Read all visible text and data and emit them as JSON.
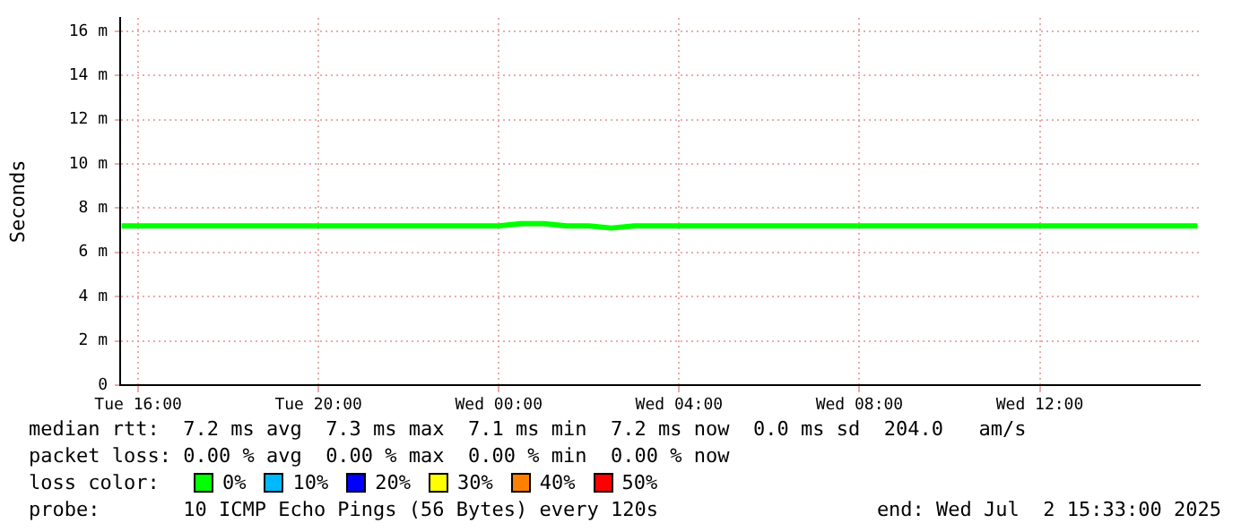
{
  "chart_data": {
    "type": "line",
    "ylabel": "Seconds",
    "x": [
      "2025-07-01T15:38",
      "2025-07-01T16:00",
      "2025-07-01T16:30",
      "2025-07-01T17:00",
      "2025-07-01T17:30",
      "2025-07-01T18:00",
      "2025-07-01T18:30",
      "2025-07-01T19:00",
      "2025-07-01T19:30",
      "2025-07-01T20:00",
      "2025-07-01T20:30",
      "2025-07-01T21:00",
      "2025-07-01T21:30",
      "2025-07-01T22:00",
      "2025-07-01T22:30",
      "2025-07-01T23:00",
      "2025-07-01T23:30",
      "2025-07-02T00:00",
      "2025-07-02T00:30",
      "2025-07-02T01:00",
      "2025-07-02T01:30",
      "2025-07-02T02:00",
      "2025-07-02T02:30",
      "2025-07-02T03:00",
      "2025-07-02T03:30",
      "2025-07-02T04:00",
      "2025-07-02T04:30",
      "2025-07-02T05:00",
      "2025-07-02T05:30",
      "2025-07-02T06:00",
      "2025-07-02T06:30",
      "2025-07-02T07:00",
      "2025-07-02T07:30",
      "2025-07-02T08:00",
      "2025-07-02T08:30",
      "2025-07-02T09:00",
      "2025-07-02T09:30",
      "2025-07-02T10:00",
      "2025-07-02T10:30",
      "2025-07-02T11:00",
      "2025-07-02T11:30",
      "2025-07-02T12:00",
      "2025-07-02T12:30",
      "2025-07-02T13:00",
      "2025-07-02T13:30",
      "2025-07-02T14:00",
      "2025-07-02T14:30",
      "2025-07-02T15:00",
      "2025-07-02T15:30"
    ],
    "series": [
      {
        "color": "#00ff00",
        "values": [
          7.2,
          7.2,
          7.2,
          7.2,
          7.2,
          7.2,
          7.2,
          7.2,
          7.2,
          7.2,
          7.2,
          7.2,
          7.2,
          7.2,
          7.2,
          7.2,
          7.2,
          7.2,
          7.3,
          7.3,
          7.2,
          7.2,
          7.1,
          7.2,
          7.2,
          7.2,
          7.2,
          7.2,
          7.2,
          7.2,
          7.2,
          7.2,
          7.2,
          7.2,
          7.2,
          7.2,
          7.2,
          7.2,
          7.2,
          7.2,
          7.2,
          7.2,
          7.2,
          7.2,
          7.2,
          7.2,
          7.2,
          7.2,
          7.2
        ]
      }
    ],
    "xlim": [
      "2025-07-01T15:36",
      "2025-07-02T15:33"
    ],
    "xticks": [
      {
        "value": "2025-07-01T16:00",
        "label": "Tue 16:00"
      },
      {
        "value": "2025-07-01T20:00",
        "label": "Tue 20:00"
      },
      {
        "value": "2025-07-02T00:00",
        "label": "Wed 00:00"
      },
      {
        "value": "2025-07-02T04:00",
        "label": "Wed 04:00"
      },
      {
        "value": "2025-07-02T08:00",
        "label": "Wed 08:00"
      },
      {
        "value": "2025-07-02T12:00",
        "label": "Wed 12:00"
      }
    ],
    "ylim": [
      0,
      16.6
    ],
    "yticks": [
      0,
      {
        "value": 2,
        "label": "2 m"
      },
      {
        "value": 4,
        "label": "4 m"
      },
      {
        "value": 6,
        "label": "6 m"
      },
      {
        "value": 8,
        "label": "8 m"
      },
      {
        "value": 10,
        "label": "10 m"
      },
      {
        "value": 12,
        "label": "12 m"
      },
      {
        "value": 14,
        "label": "14 m"
      },
      {
        "value": 16,
        "label": "16 m"
      }
    ],
    "grid": true,
    "legend": false,
    "marker": "none",
    "line_style": "solid",
    "annotations": [
      "median rtt:  7.2 ms avg  7.3 ms max  7.1 ms min  7.2 ms now  0.0 ms sd  204.0   am/s",
      "packet loss: 0.00 % avg  0.00 % max  0.00 % min  0.00 % now",
      "loss color:",
      "0%",
      "10%",
      "20%",
      "30%",
      "40%",
      "50%",
      "probe:       10 ICMP Echo Pings (56 Bytes) every 120s",
      "end: Wed Jul  2 15:33:00 2025"
    ]
  }
}
